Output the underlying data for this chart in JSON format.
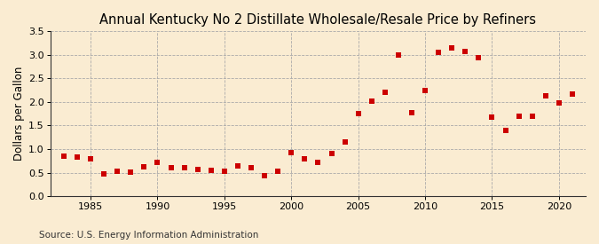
{
  "title": "Annual Kentucky No 2 Distillate Wholesale/Resale Price by Refiners",
  "ylabel": "Dollars per Gallon",
  "source": "Source: U.S. Energy Information Administration",
  "background_color": "#faecd2",
  "marker_color": "#cc0000",
  "years": [
    1983,
    1984,
    1985,
    1986,
    1987,
    1988,
    1989,
    1990,
    1991,
    1992,
    1993,
    1994,
    1995,
    1996,
    1997,
    1998,
    1999,
    2000,
    2001,
    2002,
    2003,
    2004,
    2005,
    2006,
    2007,
    2008,
    2009,
    2010,
    2011,
    2012,
    2013,
    2014,
    2015,
    2016,
    2017,
    2018,
    2019,
    2020,
    2021
  ],
  "values": [
    0.84,
    0.83,
    0.79,
    0.48,
    0.52,
    0.51,
    0.63,
    0.72,
    0.6,
    0.61,
    0.57,
    0.54,
    0.53,
    0.64,
    0.6,
    0.44,
    0.53,
    0.92,
    0.79,
    0.72,
    0.91,
    1.15,
    1.75,
    2.02,
    2.2,
    3.0,
    1.78,
    2.24,
    3.05,
    3.14,
    3.08,
    2.94,
    1.67,
    1.39,
    1.7,
    1.7,
    2.13,
    1.98,
    2.17
  ],
  "xlim": [
    1982,
    2022
  ],
  "ylim": [
    0.0,
    3.5
  ],
  "yticks": [
    0.0,
    0.5,
    1.0,
    1.5,
    2.0,
    2.5,
    3.0,
    3.5
  ],
  "xticks": [
    1985,
    1990,
    1995,
    2000,
    2005,
    2010,
    2015,
    2020
  ],
  "grid_color": "#aaaaaa",
  "grid_style": "--",
  "title_fontsize": 10.5,
  "label_fontsize": 8.5,
  "tick_fontsize": 8,
  "source_fontsize": 7.5
}
